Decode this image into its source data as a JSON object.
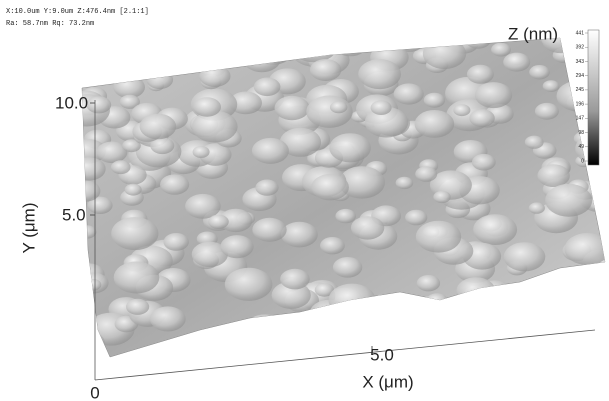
{
  "header": {
    "scan_info": "X:10.0um  Y:9.0um  Z:476.4nm [2.1:1]",
    "roughness": "Ra: 58.7nm  Rq: 73.2nm"
  },
  "colorbar": {
    "title": "Z (nm)",
    "labels": [
      "441",
      "392",
      "343",
      "294",
      "245",
      "196",
      "147",
      "98",
      "49",
      "0"
    ]
  },
  "y_axis": {
    "title": "Y (μm)",
    "ticks": [
      "10.0",
      "5.0"
    ]
  },
  "x_axis": {
    "title": "X (μm)",
    "ticks": [
      "0",
      "5.0"
    ]
  }
}
